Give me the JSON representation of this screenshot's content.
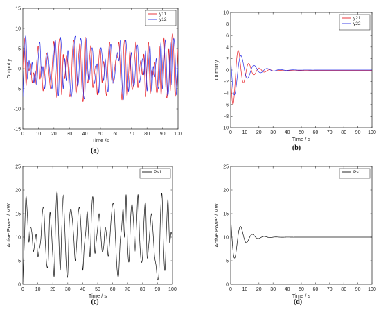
{
  "chart_data": [
    {
      "panel": "a",
      "type": "line",
      "caption": "(a)",
      "xlabel": "Time /s",
      "ylabel": "Output y",
      "xlim": [
        0,
        100
      ],
      "ylim": [
        -15,
        15
      ],
      "xticks": [
        0,
        10,
        20,
        30,
        40,
        50,
        60,
        70,
        80,
        90,
        100
      ],
      "yticks": [
        -15,
        -10,
        -5,
        0,
        5,
        10,
        15
      ],
      "legend_position": "top-right",
      "series": [
        {
          "name": "y11",
          "color": "#e8232a",
          "style": "oscillating",
          "x": [
            0,
            1,
            2,
            3,
            4,
            5,
            6,
            7,
            8,
            9,
            10,
            11,
            12,
            13,
            14,
            15,
            16,
            17,
            18,
            19,
            20,
            21,
            22,
            23,
            24,
            25,
            26,
            27,
            28,
            29,
            30,
            31,
            32,
            33,
            34,
            35,
            36,
            37,
            38,
            39,
            40,
            41,
            42,
            43,
            44,
            45,
            46,
            47,
            48,
            49,
            50,
            51,
            52,
            53,
            54,
            55,
            56,
            57,
            58,
            59,
            60,
            61,
            62,
            63,
            64,
            65,
            66,
            67,
            68,
            69,
            70,
            71,
            72,
            73,
            74,
            75,
            76,
            77,
            78,
            79,
            80,
            81,
            82,
            83,
            84,
            85,
            86,
            87,
            88,
            89,
            90,
            91,
            92,
            93,
            94,
            95,
            96,
            97,
            98,
            99,
            100
          ],
          "y": [
            0,
            7.5,
            -4.2,
            1.5,
            -0.5,
            1.2,
            -3.5,
            -1,
            -3.8,
            2,
            5.5,
            -2.5,
            0.5,
            -5.5,
            -1.5,
            3.5,
            2.5,
            -2,
            -5,
            1.2,
            6.8,
            -1.5,
            -7,
            5,
            6.5,
            -6.5,
            3.5,
            -2.5,
            3,
            1.5,
            -6.5,
            -5,
            4.5,
            6.5,
            -5.5,
            -3.5,
            3.5,
            6,
            -4.5,
            -7.5,
            7.8,
            -0.5,
            -3.5,
            2.5,
            5.5,
            -4.5,
            -1.5,
            0.5,
            -6.5,
            2.5,
            4.8,
            -3.5,
            1.8,
            -3,
            -6.5,
            2.5,
            6.5,
            -2,
            -3.5,
            -0.5,
            2.5,
            3,
            6.5,
            -2.5,
            -7.5,
            5,
            6,
            -6.5,
            -2.5,
            4.5,
            -4,
            -4.5,
            2.5,
            6.5,
            -4.5,
            -1,
            2,
            -1.5,
            3.5,
            -7,
            0.5,
            6.5,
            -6,
            -0.5,
            -1.5,
            1.5,
            -5.5,
            -4.5,
            5.5,
            -6.5,
            0.5,
            7.5,
            -4,
            -6.8,
            5,
            -5.5,
            7.5,
            6.5,
            -6.5,
            -3,
            5
          ]
        },
        {
          "name": "y12",
          "color": "#2b30e6",
          "style": "oscillating",
          "x": [
            0,
            1,
            2,
            3,
            4,
            5,
            6,
            7,
            8,
            9,
            10,
            11,
            12,
            13,
            14,
            15,
            16,
            17,
            18,
            19,
            20,
            21,
            22,
            23,
            24,
            25,
            26,
            27,
            28,
            29,
            30,
            31,
            32,
            33,
            34,
            35,
            36,
            37,
            38,
            39,
            40,
            41,
            42,
            43,
            44,
            45,
            46,
            47,
            48,
            49,
            50,
            51,
            52,
            53,
            54,
            55,
            56,
            57,
            58,
            59,
            60,
            61,
            62,
            63,
            64,
            65,
            66,
            67,
            68,
            69,
            70,
            71,
            72,
            73,
            74,
            75,
            76,
            77,
            78,
            79,
            80,
            81,
            82,
            83,
            84,
            85,
            86,
            87,
            88,
            89,
            90,
            91,
            92,
            93,
            94,
            95,
            96,
            97,
            98,
            99,
            100
          ],
          "y": [
            -7,
            3.5,
            8,
            -2.5,
            2,
            -1.5,
            1.5,
            -3.5,
            -0.5,
            -4,
            3,
            6.5,
            -2,
            0.5,
            -5,
            -0.5,
            4,
            0.5,
            -3.5,
            -4.5,
            3.5,
            7,
            -1.5,
            -6.5,
            7,
            4.5,
            -5,
            2.5,
            -3,
            4.5,
            -1,
            -7,
            -4,
            5.5,
            7.5,
            -3.5,
            -2.5,
            7,
            5,
            -6,
            -6,
            7.5,
            -1.5,
            -2.5,
            4,
            4.5,
            -3.5,
            -1,
            1,
            -6,
            4.5,
            3.5,
            -3,
            2.5,
            -2.5,
            -5.5,
            4,
            5.5,
            -3,
            -2.5,
            1.5,
            4,
            2,
            7,
            -4.5,
            -7,
            6.5,
            4,
            -5.5,
            -1,
            4,
            -3.5,
            -3.5,
            3.5,
            5.5,
            -3,
            -1.5,
            2.5,
            -1.5,
            4.5,
            -5.5,
            1.5,
            5.5,
            -5.5,
            0.5,
            -2,
            2.5,
            -4.5,
            -3,
            6.5,
            -5,
            2,
            7,
            -5.5,
            -5,
            6.5,
            -4,
            7,
            4.5,
            -6.5,
            1
          ]
        }
      ]
    },
    {
      "panel": "b",
      "type": "line",
      "caption": "(b)",
      "xlabel": "Time / s",
      "ylabel": "Output y",
      "xlim": [
        0,
        100
      ],
      "ylim": [
        -10,
        10
      ],
      "xticks": [
        0,
        10,
        20,
        30,
        40,
        50,
        60,
        70,
        80,
        90,
        100
      ],
      "yticks": [
        -10,
        -8,
        -6,
        -4,
        -2,
        0,
        2,
        4,
        6,
        8,
        10
      ],
      "legend_position": "top-right",
      "series": [
        {
          "name": "y21",
          "color": "#e8232a",
          "style": "damped",
          "amp": 7.5,
          "freq": 0.85,
          "decay": 0.14,
          "phase": 1.6,
          "final": -0.1
        },
        {
          "name": "y22",
          "color": "#2b30e6",
          "style": "damped",
          "amp": 6.0,
          "freq": 0.68,
          "decay": 0.12,
          "phase": 1.2,
          "final": 0.0
        }
      ]
    },
    {
      "panel": "c",
      "type": "line",
      "caption": "(c)",
      "xlabel": "Time / s",
      "ylabel": "Active Power / MW",
      "xlim": [
        0,
        100
      ],
      "ylim": [
        0,
        25
      ],
      "xticks": [
        0,
        10,
        20,
        30,
        40,
        50,
        60,
        70,
        80,
        90,
        100
      ],
      "yticks": [
        0,
        5,
        10,
        15,
        20,
        25
      ],
      "legend_position": "top-right",
      "series": [
        {
          "name": "Ps1",
          "color": "#111111",
          "style": "oscillating",
          "x": [
            0,
            1,
            2,
            3,
            4,
            5,
            6,
            7,
            8,
            9,
            10,
            11,
            12,
            13,
            14,
            15,
            16,
            17,
            18,
            19,
            20,
            21,
            22,
            23,
            24,
            25,
            26,
            27,
            28,
            29,
            30,
            31,
            32,
            33,
            34,
            35,
            36,
            37,
            38,
            39,
            40,
            41,
            42,
            43,
            44,
            45,
            46,
            47,
            48,
            49,
            50,
            51,
            52,
            53,
            54,
            55,
            56,
            57,
            58,
            59,
            60,
            61,
            62,
            63,
            64,
            65,
            66,
            67,
            68,
            69,
            70,
            71,
            72,
            73,
            74,
            75,
            76,
            77,
            78,
            79,
            80,
            81,
            82,
            83,
            84,
            85,
            86,
            87,
            88,
            89,
            90,
            91,
            92,
            93,
            94,
            95,
            96,
            97,
            98,
            99,
            100
          ],
          "y": [
            0.5,
            9,
            18.5,
            15,
            9,
            12,
            11,
            7,
            9,
            10.5,
            6,
            7.5,
            9.5,
            15,
            16,
            9,
            4,
            5,
            15,
            12,
            6,
            2,
            15,
            19.5,
            10,
            3,
            12,
            19,
            12,
            4,
            2,
            13,
            16,
            14,
            10,
            5,
            9,
            15,
            16,
            11,
            3,
            8,
            11,
            15.5,
            10,
            6,
            16,
            18,
            7,
            9,
            12,
            15,
            11,
            7,
            8,
            12,
            10,
            6,
            9,
            14,
            17,
            16,
            9,
            3,
            2,
            9,
            12,
            16,
            10,
            19,
            8,
            5,
            14,
            17,
            13,
            7,
            13,
            19,
            10,
            5,
            6,
            14,
            17,
            6,
            8,
            12,
            15,
            11,
            6,
            4,
            1,
            3,
            15,
            19,
            8,
            3,
            12,
            18,
            9,
            11,
            10
          ]
        }
      ]
    },
    {
      "panel": "d",
      "type": "line",
      "caption": "(d)",
      "xlabel": "Time / s",
      "ylabel": "Active Power / MW",
      "xlim": [
        0,
        100
      ],
      "ylim": [
        0,
        25
      ],
      "xticks": [
        0,
        10,
        20,
        30,
        40,
        50,
        60,
        70,
        80,
        90,
        100
      ],
      "yticks": [
        0,
        5,
        10,
        15,
        20,
        25
      ],
      "legend_position": "top-right",
      "series": [
        {
          "name": "Ps1",
          "color": "#111111",
          "style": "damped",
          "amp": 7.0,
          "freq": 0.75,
          "decay": 0.16,
          "phase": 0.9,
          "final": 10.0
        }
      ]
    }
  ]
}
